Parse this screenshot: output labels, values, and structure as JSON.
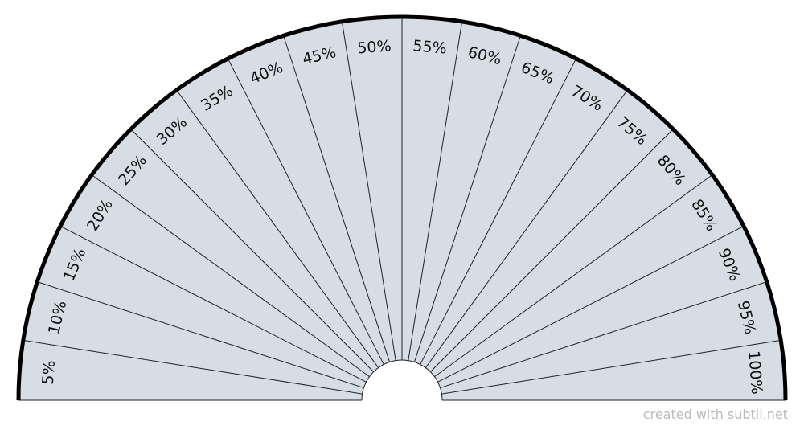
{
  "segments": [
    "5%",
    "10%",
    "15%",
    "20%",
    "25%",
    "30%",
    "35%",
    "40%",
    "45%",
    "50%",
    "55%",
    "60%",
    "65%",
    "70%",
    "75%",
    "80%",
    "85%",
    "90%",
    "95%",
    "100%"
  ],
  "footer": "created with subtil.net"
}
